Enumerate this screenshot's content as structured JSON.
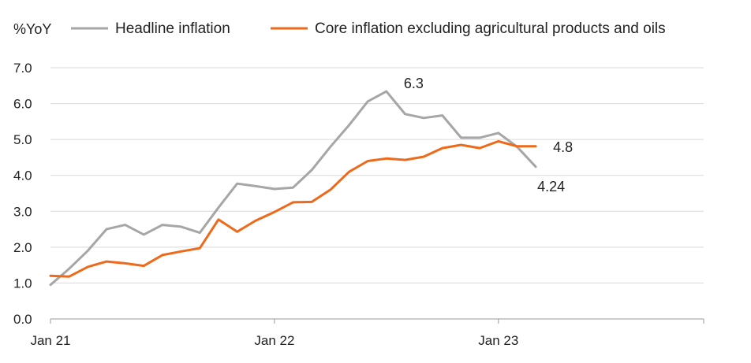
{
  "chart_data": {
    "type": "line",
    "ylabel": "%YoY",
    "ylim": [
      0,
      7
    ],
    "yticks": [
      "0.0",
      "1.0",
      "2.0",
      "3.0",
      "4.0",
      "5.0",
      "6.0",
      "7.0"
    ],
    "xticks": [
      {
        "label": "Jan 21",
        "month": 0
      },
      {
        "label": "Jan 22",
        "month": 12
      },
      {
        "label": "Jan 23",
        "month": 24
      }
    ],
    "xlim_months": [
      0,
      35
    ],
    "grid": true,
    "legend": "top",
    "series": [
      {
        "name": "Headline inflation",
        "color": "#a6a6a6",
        "start_month": 0,
        "values": [
          0.95,
          1.4,
          1.9,
          2.5,
          2.62,
          2.35,
          2.62,
          2.57,
          2.4,
          3.1,
          3.77,
          3.7,
          3.62,
          3.66,
          4.15,
          4.8,
          5.4,
          6.06,
          6.34,
          5.71,
          5.6,
          5.67,
          5.05,
          5.05,
          5.18,
          4.8,
          4.24
        ],
        "end_label": "4.24",
        "peak_label": "6.3"
      },
      {
        "name": "Core inflation excluding agricultural products and oils",
        "color": "#ee6a1a",
        "start_month": 0,
        "values": [
          1.2,
          1.18,
          1.45,
          1.6,
          1.55,
          1.48,
          1.78,
          1.88,
          1.97,
          2.77,
          2.43,
          2.74,
          2.98,
          3.25,
          3.26,
          3.6,
          4.1,
          4.4,
          4.47,
          4.43,
          4.52,
          4.76,
          4.85,
          4.76,
          4.95,
          4.81,
          4.81
        ],
        "end_label": "4.8"
      }
    ]
  }
}
